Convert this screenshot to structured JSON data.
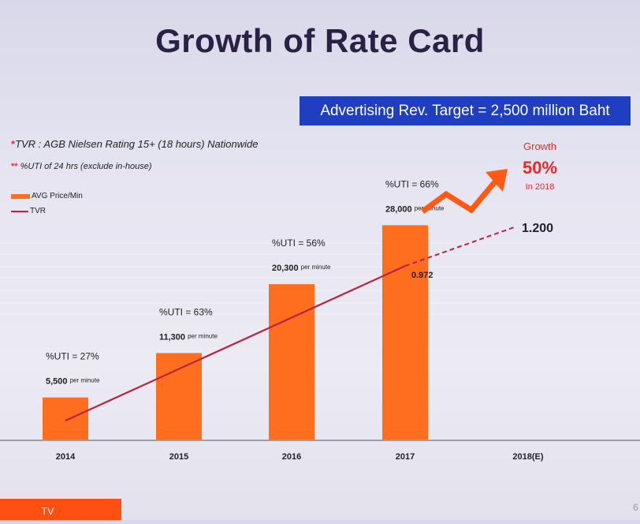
{
  "title": "Growth of Rate Card",
  "target": "Advertising Rev. Target = 2,500 million Baht",
  "notes": {
    "note1_star": "*",
    "note1": "TVR : AGB Nielsen Rating 15+ (18 hours) Nationwide",
    "note2_star": "**",
    "note2": "%UTI of 24 hrs (exclude in-house)"
  },
  "legend": {
    "bar": "AVG Price/Min",
    "line": "TVR"
  },
  "growth": {
    "label": "Growth",
    "value": "50%",
    "sub": "In 2018"
  },
  "footer": {
    "tab": "TV",
    "page": "6"
  },
  "colors": {
    "bar": "#ff6d1f",
    "tvr_line": "#b8243e",
    "arrow": "#ff5a14",
    "target_bg": "#1f3fc0",
    "growth_text": "#e52a2a"
  },
  "chart_data": {
    "type": "bar",
    "categories": [
      "2014",
      "2015",
      "2016",
      "2017",
      "2018(E)"
    ],
    "series": [
      {
        "name": "AVG Price/Min",
        "values": [
          5500,
          11300,
          20300,
          28000,
          null
        ],
        "value_labels": [
          "5,500",
          "11,300",
          "20,300",
          "28,000",
          ""
        ],
        "unit_label": "per minute"
      },
      {
        "name": "TVR",
        "type": "line",
        "values": [
          null,
          null,
          null,
          0.972,
          1.2
        ],
        "value_labels": [
          "",
          "",
          "",
          "0.972",
          "1.200"
        ]
      }
    ],
    "uti_labels": [
      "%UTI = 27%",
      "%UTI = 63%",
      "%UTI = 56%",
      "%UTI = 66%",
      ""
    ],
    "ylim": [
      0,
      30000
    ]
  }
}
